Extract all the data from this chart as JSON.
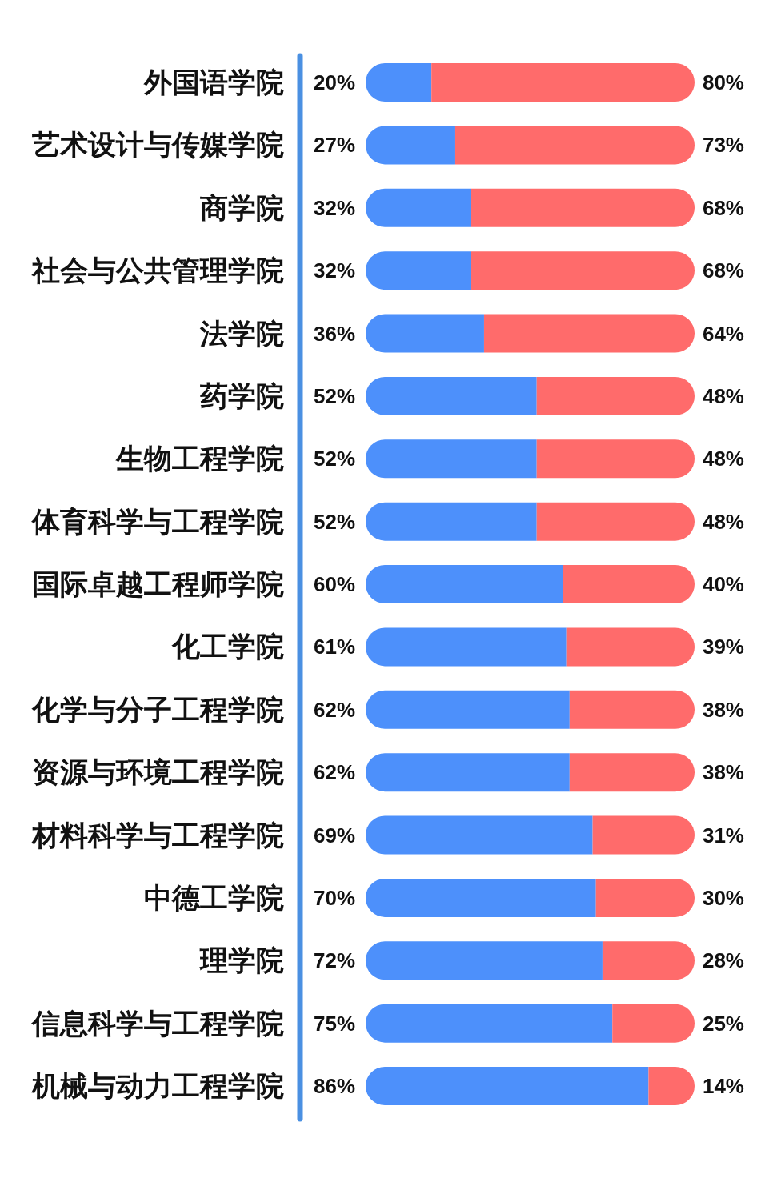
{
  "chart_data": {
    "type": "bar",
    "orientation": "horizontal",
    "stacked": true,
    "categories": [
      "外国语学院",
      "艺术设计与传媒学院",
      "商学院",
      "社会与公共管理学院",
      "法学院",
      "药学院",
      "生物工程学院",
      "体育科学与工程学院",
      "国际卓越工程师学院",
      "化工学院",
      "化学与分子工程学院",
      "资源与环境工程学院",
      "材料科学与工程学院",
      "中德工学院",
      "理学院",
      "信息科学与工程学院",
      "机械与动力工程学院"
    ],
    "xlim": [
      0,
      100
    ],
    "series": [
      {
        "color": "#4d90fb",
        "values": [
          20,
          27,
          32,
          32,
          36,
          52,
          52,
          52,
          60,
          61,
          62,
          62,
          69,
          70,
          72,
          75,
          86
        ],
        "value_labels": [
          "20%",
          "27%",
          "32%",
          "32%",
          "36%",
          "52%",
          "52%",
          "52%",
          "60%",
          "61%",
          "62%",
          "62%",
          "69%",
          "70%",
          "72%",
          "75%",
          "86%"
        ]
      },
      {
        "color": "#ff6b6b",
        "values": [
          80,
          73,
          68,
          68,
          64,
          48,
          48,
          48,
          40,
          39,
          38,
          38,
          31,
          30,
          28,
          25,
          14
        ],
        "value_labels": [
          "80%",
          "73%",
          "68%",
          "68%",
          "64%",
          "48%",
          "48%",
          "48%",
          "40%",
          "39%",
          "38%",
          "38%",
          "31%",
          "30%",
          "28%",
          "25%",
          "14%"
        ]
      }
    ]
  }
}
